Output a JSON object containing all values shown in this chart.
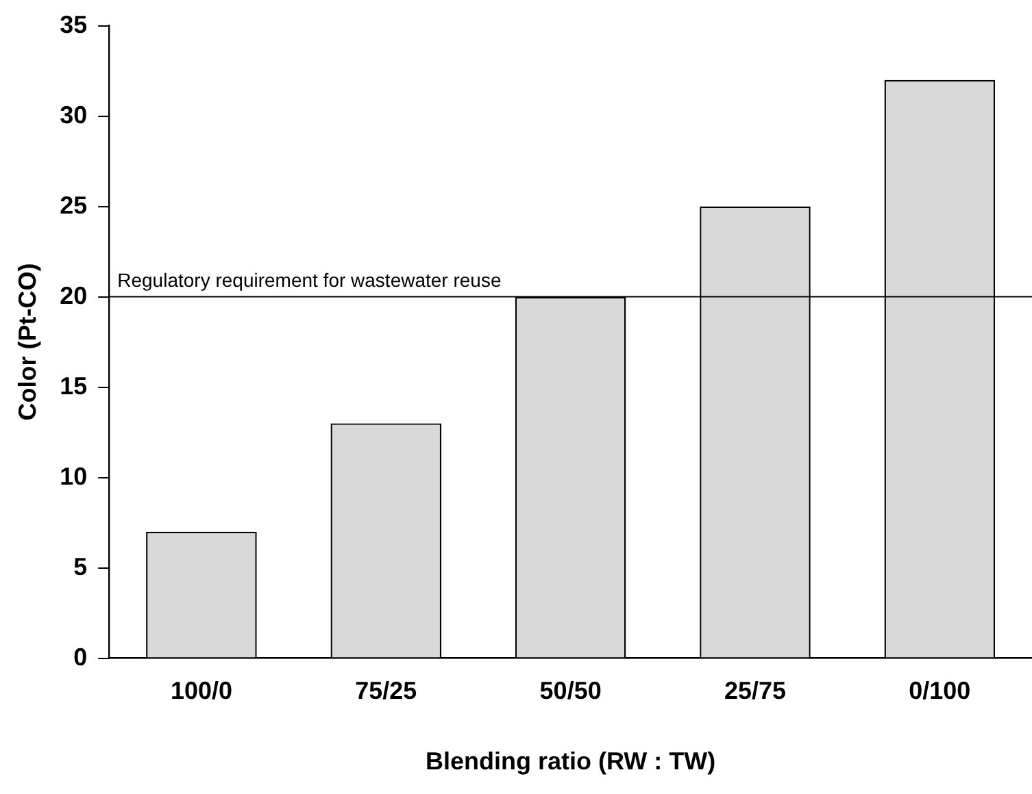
{
  "chart_data": {
    "type": "bar",
    "xlabel": "Blending ratio (RW : TW)",
    "ylabel": "Color (Pt-CO)",
    "categories": [
      "100/0",
      "75/25",
      "50/50",
      "25/75",
      "0/100"
    ],
    "values": [
      7,
      13,
      20,
      25,
      32
    ],
    "color": "#d9d9d9",
    "ylim": [
      0,
      35
    ],
    "yticks": [
      0,
      5,
      10,
      15,
      20,
      25,
      30,
      35
    ],
    "grid": false,
    "legend": false,
    "ref_lines": [
      {
        "axis": "y",
        "value": 20,
        "label": "Regulatory requirement for wastewater reuse",
        "color": "#000000"
      }
    ]
  }
}
